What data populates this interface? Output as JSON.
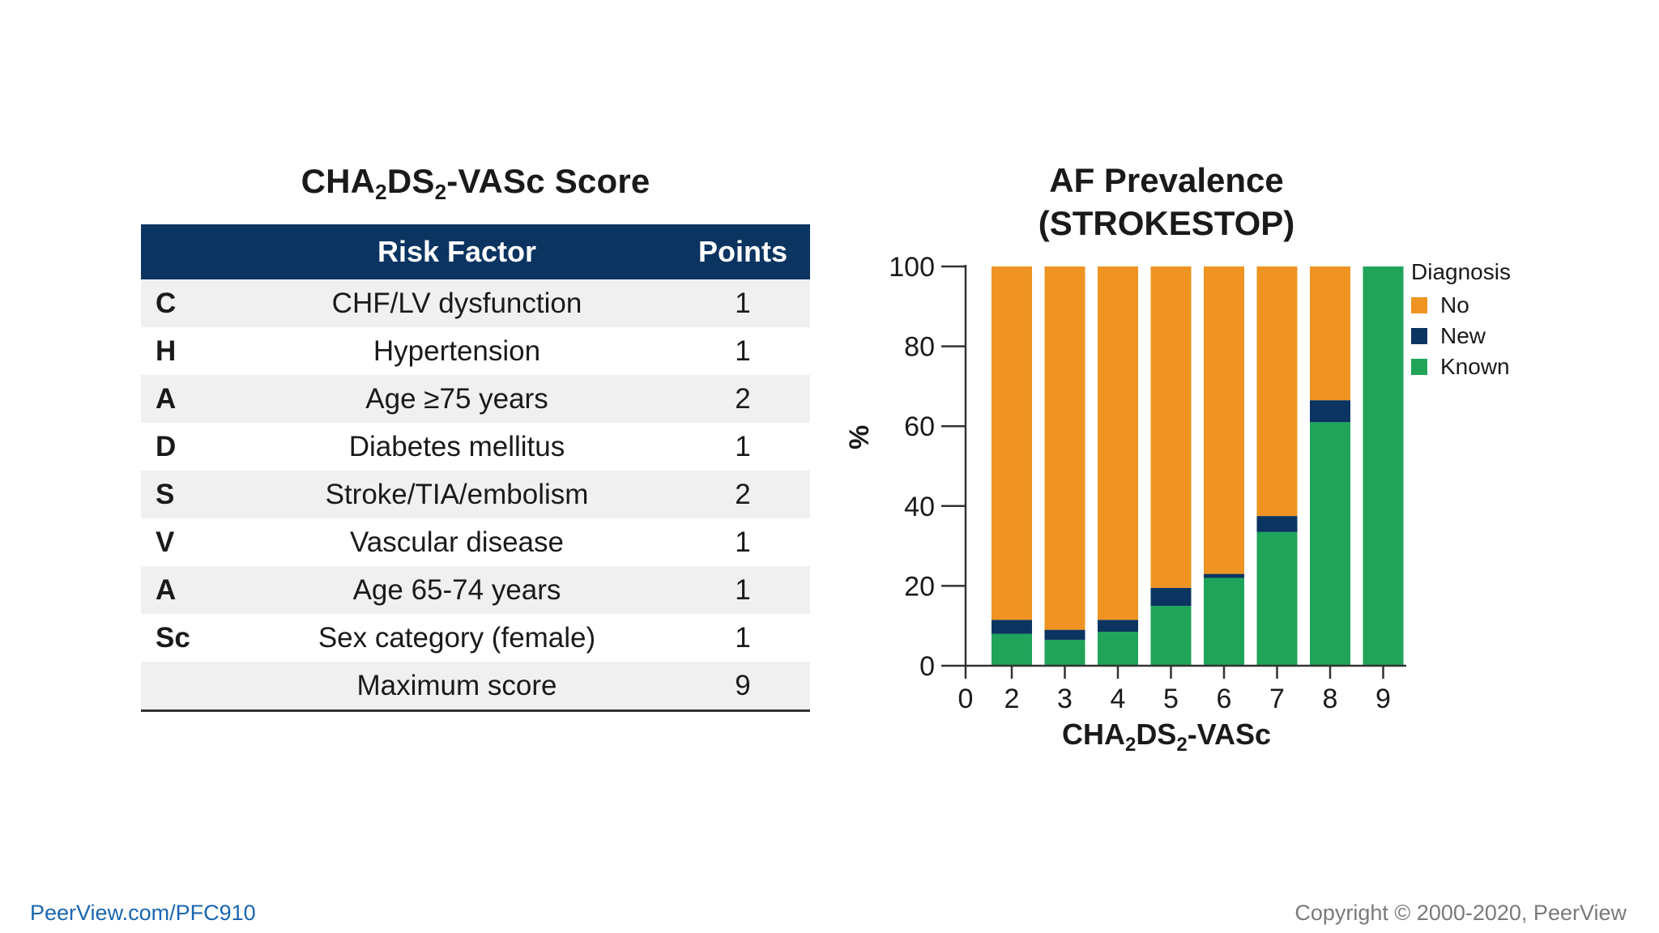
{
  "table": {
    "title_prefix": "CHA",
    "title_sub1": "2",
    "title_mid": "DS",
    "title_sub2": "2",
    "title_suffix": "-VASc Score",
    "header_factor": "Risk Factor",
    "header_points": "Points",
    "rows": [
      {
        "letter": "C",
        "factor": "CHF/LV dysfunction",
        "points": "1"
      },
      {
        "letter": "H",
        "factor": "Hypertension",
        "points": "1"
      },
      {
        "letter": "A",
        "factor": "Age ≥75 years",
        "points": "2"
      },
      {
        "letter": "D",
        "factor": "Diabetes mellitus",
        "points": "1"
      },
      {
        "letter": "S",
        "factor": "Stroke/TIA/embolism",
        "points": "2"
      },
      {
        "letter": "V",
        "factor": "Vascular disease",
        "points": "1"
      },
      {
        "letter": "A",
        "factor": "Age 65-74 years",
        "points": "1"
      },
      {
        "letter": "Sc",
        "factor": "Sex category (female)",
        "points": "1"
      },
      {
        "letter": "",
        "factor": "Maximum score",
        "points": "9"
      }
    ]
  },
  "chart_data": {
    "type": "bar",
    "stacked": true,
    "title_line1": "AF Prevalence",
    "title_line2": "(STROKESTOP)",
    "ylabel": "%",
    "xlabel_prefix": "CHA",
    "xlabel_sub1": "2",
    "xlabel_mid": "DS",
    "xlabel_sub2": "2",
    "xlabel_suffix": "-VASc",
    "categories": [
      "2",
      "3",
      "4",
      "5",
      "6",
      "7",
      "8",
      "9"
    ],
    "x_ticks": [
      "0",
      "2",
      "3",
      "4",
      "5",
      "6",
      "7",
      "8",
      "9"
    ],
    "y_ticks": [
      0,
      20,
      40,
      60,
      80,
      100
    ],
    "ylim": [
      0,
      100
    ],
    "legend_title": "Diagnosis",
    "legend_position": "top-right",
    "series": [
      {
        "name": "Known",
        "color": "#1fa45a",
        "values": [
          8,
          6.5,
          8.5,
          15,
          22,
          33.5,
          61,
          100
        ]
      },
      {
        "name": "New",
        "color": "#0b3461",
        "values": [
          3.5,
          2.5,
          3,
          4.5,
          1,
          4,
          5.5,
          0
        ]
      },
      {
        "name": "No",
        "color": "#ef9422",
        "values": [
          88.5,
          91,
          88.5,
          80.5,
          77,
          62.5,
          33.5,
          0
        ]
      }
    ],
    "legend_order": [
      "No",
      "New",
      "Known"
    ]
  },
  "footer": {
    "left": "PeerView.com/PFC910",
    "right": "Copyright © 2000-2020, PeerView"
  }
}
